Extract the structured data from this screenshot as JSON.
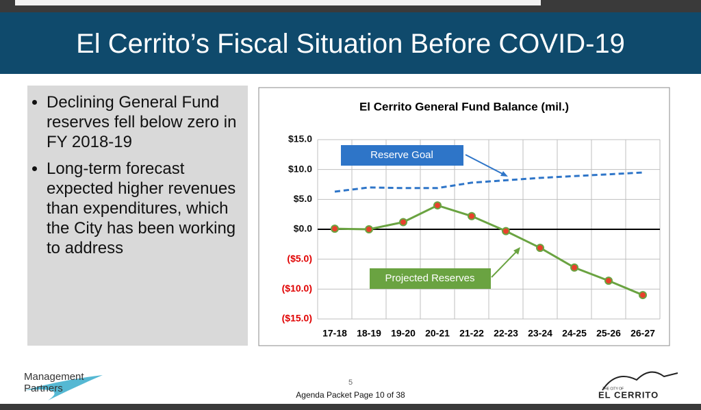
{
  "slide": {
    "title": "El Cerrito’s Fiscal Situation Before COVID-19",
    "bullets": [
      "Declining General Fund reserves fell below zero in FY 2018-19",
      "Long-term forecast expected higher revenues than expenditures, which the City has been working to address"
    ],
    "logo_left": [
      "Management",
      "Partners"
    ],
    "page_number": "5",
    "footer": "Agenda Packet Page 10 of 38",
    "logo_right": {
      "small": "THE CITY OF",
      "name": "EL CERRITO"
    }
  },
  "chart_data": {
    "type": "line",
    "title": "El Cerrito General Fund Balance (mil.)",
    "categories": [
      "17-18",
      "18-19",
      "19-20",
      "20-21",
      "21-22",
      "22-23",
      "23-24",
      "24-25",
      "25-26",
      "26-27"
    ],
    "series": [
      {
        "name": "Reserve Goal",
        "color": "#2e75c8",
        "dashed": true,
        "values": [
          6.3,
          7.0,
          6.9,
          6.9,
          7.8,
          8.2,
          8.6,
          8.9,
          9.2,
          9.5
        ]
      },
      {
        "name": "Projected Reserves",
        "color": "#6aa341",
        "marker_color": "#e8412c",
        "values": [
          0.1,
          0.0,
          1.2,
          4.0,
          2.2,
          -0.3,
          -3.1,
          -6.4,
          -8.6,
          -11.0
        ]
      }
    ],
    "ylim": [
      -15,
      15
    ],
    "yticks": [
      {
        "value": -15,
        "label": "($15.0)"
      },
      {
        "value": -10,
        "label": "($10.0)"
      },
      {
        "value": -5,
        "label": "($5.0)"
      },
      {
        "value": 0,
        "label": "$0.0"
      },
      {
        "value": 5,
        "label": "$5.0"
      },
      {
        "value": 10,
        "label": "$10.0"
      },
      {
        "value": 15,
        "label": "$15.0"
      }
    ],
    "grid": true
  }
}
